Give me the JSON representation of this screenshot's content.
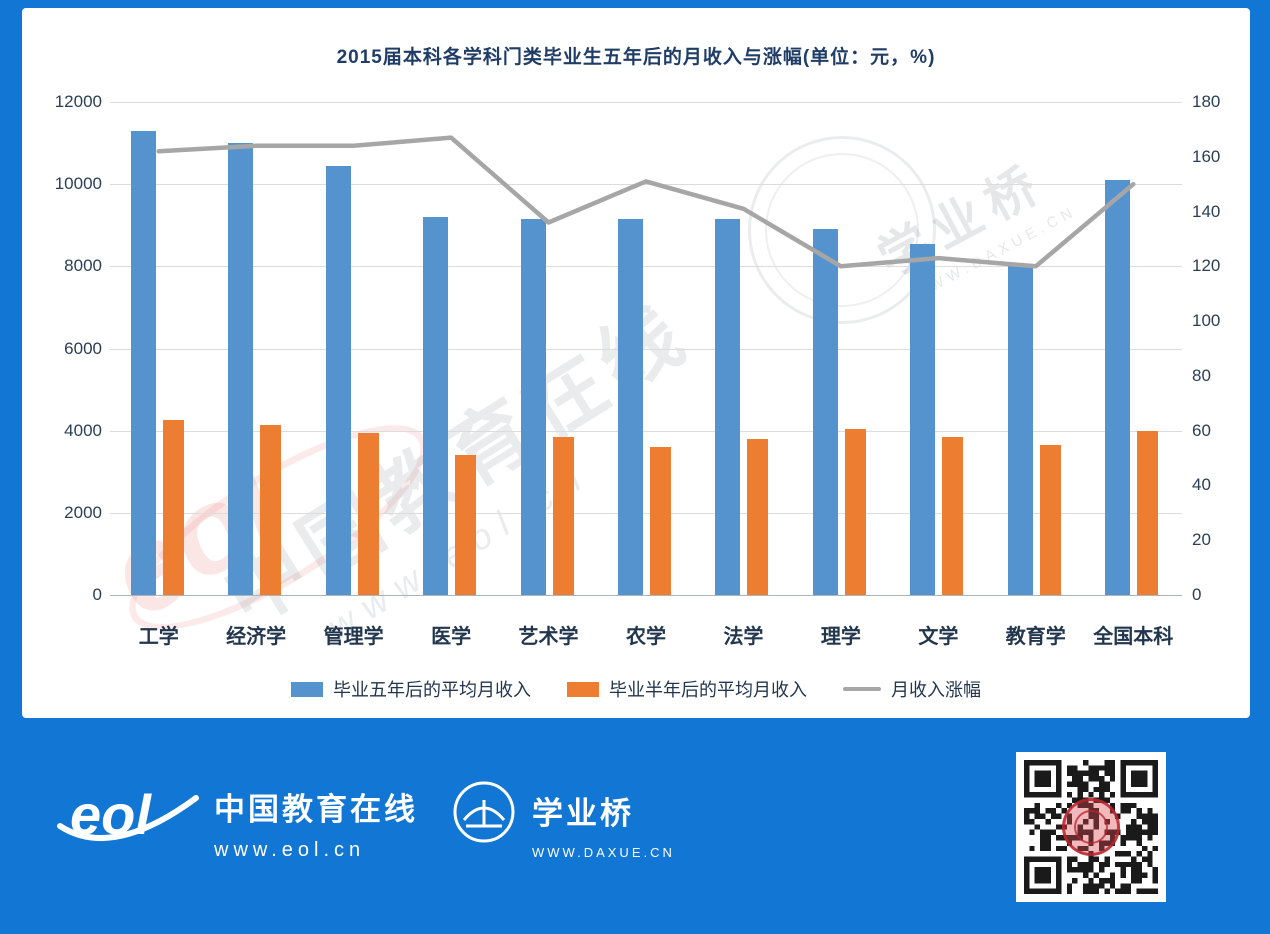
{
  "chart_data": {
    "type": "bar",
    "title": "2015届本科各学科门类毕业生五年后的月收入与涨幅(单位：元，%)",
    "categories": [
      "工学",
      "经济学",
      "管理学",
      "医学",
      "艺术学",
      "农学",
      "法学",
      "理学",
      "文学",
      "教育学",
      "全国本科"
    ],
    "series": [
      {
        "name": "毕业五年后的平均月收入",
        "type": "bar",
        "axis": "left",
        "color": "#5593cf",
        "values": [
          11300,
          11000,
          10450,
          9200,
          9150,
          9150,
          9150,
          8900,
          8550,
          8050,
          10100
        ]
      },
      {
        "name": "毕业半年后的平均月收入",
        "type": "bar",
        "axis": "left",
        "color": "#ed7d31",
        "values": [
          4250,
          4150,
          3950,
          3400,
          3850,
          3600,
          3800,
          4050,
          3850,
          3650,
          4000
        ]
      },
      {
        "name": "月收入涨幅",
        "type": "line",
        "axis": "right",
        "color": "#a6a6a6",
        "values": [
          162,
          164,
          164,
          167,
          136,
          151,
          141,
          120,
          123,
          120,
          150
        ]
      }
    ],
    "left_axis": {
      "min": 0,
      "max": 12000,
      "step": 2000,
      "ticks": [
        "12000",
        "10000",
        "8000",
        "6000",
        "4000",
        "2000",
        "0"
      ]
    },
    "right_axis": {
      "min": 0,
      "max": 180,
      "step": 20,
      "ticks": [
        "180",
        "160",
        "140",
        "120",
        "100",
        "80",
        "60",
        "40",
        "20",
        "0"
      ]
    },
    "grid": true,
    "legend_position": "bottom"
  },
  "watermark": {
    "brand": "中国教育在线",
    "url": "www.eol.cn",
    "seal": "学业桥",
    "seal_sub": "WWW.DAXUE.CN",
    "eol": "eol"
  },
  "footer": {
    "eol_logo_text": "eol",
    "eol_name": "中国教育在线",
    "eol_url": "www.eol.cn",
    "bridge_name": "学业桥",
    "bridge_url": "WWW.DAXUE.CN"
  }
}
